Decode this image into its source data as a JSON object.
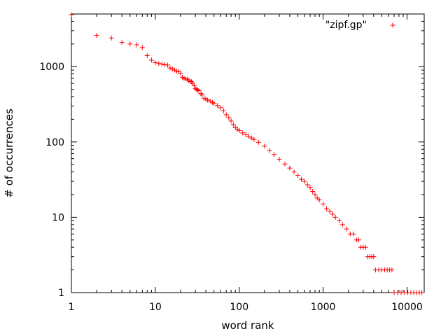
{
  "chart_data": {
    "type": "scatter",
    "xlabel": "word rank",
    "ylabel": "# of occurrences",
    "xscale": "log",
    "yscale": "log",
    "xlim": [
      1,
      16000
    ],
    "ylim": [
      1,
      5000
    ],
    "x_ticks": [
      1,
      10,
      100,
      1000,
      10000
    ],
    "x_tick_labels": [
      "1",
      "10",
      "100",
      "1000",
      "10000"
    ],
    "y_ticks": [
      1,
      10,
      100,
      1000
    ],
    "y_tick_labels": [
      "1",
      "10",
      "100",
      "1000"
    ],
    "grid": false,
    "legend_position": "top-right",
    "marker": "plus",
    "color": "#ff0000",
    "series": [
      {
        "name": "\"zipf.gp\"",
        "points": [
          [
            1,
            4900
          ],
          [
            2,
            2600
          ],
          [
            3,
            2400
          ],
          [
            4,
            2100
          ],
          [
            5,
            2000
          ],
          [
            6,
            1950
          ],
          [
            7,
            1800
          ],
          [
            8,
            1400
          ],
          [
            9,
            1220
          ],
          [
            10,
            1130
          ],
          [
            11,
            1100
          ],
          [
            12,
            1080
          ],
          [
            13,
            1060
          ],
          [
            14,
            1050
          ],
          [
            15,
            960
          ],
          [
            16,
            930
          ],
          [
            17,
            900
          ],
          [
            18,
            870
          ],
          [
            19,
            860
          ],
          [
            20,
            820
          ],
          [
            21,
            720
          ],
          [
            22,
            700
          ],
          [
            23,
            690
          ],
          [
            24,
            680
          ],
          [
            25,
            650
          ],
          [
            26,
            640
          ],
          [
            27,
            630
          ],
          [
            28,
            600
          ],
          [
            29,
            560
          ],
          [
            30,
            510
          ],
          [
            31,
            500
          ],
          [
            32,
            490
          ],
          [
            33,
            480
          ],
          [
            35,
            440
          ],
          [
            36,
            420
          ],
          [
            38,
            380
          ],
          [
            40,
            370
          ],
          [
            42,
            360
          ],
          [
            45,
            350
          ],
          [
            48,
            335
          ],
          [
            50,
            325
          ],
          [
            55,
            305
          ],
          [
            60,
            285
          ],
          [
            65,
            260
          ],
          [
            70,
            230
          ],
          [
            75,
            210
          ],
          [
            80,
            190
          ],
          [
            85,
            170
          ],
          [
            90,
            155
          ],
          [
            95,
            148
          ],
          [
            100,
            142
          ],
          [
            110,
            132
          ],
          [
            120,
            125
          ],
          [
            130,
            119
          ],
          [
            140,
            113
          ],
          [
            150,
            108
          ],
          [
            170,
            99
          ],
          [
            200,
            88
          ],
          [
            230,
            77
          ],
          [
            260,
            68
          ],
          [
            300,
            59
          ],
          [
            350,
            51
          ],
          [
            400,
            45
          ],
          [
            450,
            40
          ],
          [
            500,
            36
          ],
          [
            550,
            32
          ],
          [
            600,
            30
          ],
          [
            650,
            27
          ],
          [
            700,
            25
          ],
          [
            750,
            22
          ],
          [
            800,
            20
          ],
          [
            850,
            18
          ],
          [
            900,
            17
          ],
          [
            1000,
            15
          ],
          [
            1100,
            13
          ],
          [
            1200,
            12
          ],
          [
            1300,
            11
          ],
          [
            1400,
            10
          ],
          [
            1550,
            9
          ],
          [
            1700,
            8
          ],
          [
            1900,
            7
          ],
          [
            2100,
            6
          ],
          [
            2300,
            6
          ],
          [
            2500,
            5
          ],
          [
            2650,
            5
          ],
          [
            2800,
            4
          ],
          [
            3000,
            4
          ],
          [
            3200,
            4
          ],
          [
            3400,
            3
          ],
          [
            3600,
            3
          ],
          [
            3800,
            3
          ],
          [
            4000,
            3
          ],
          [
            4200,
            2
          ],
          [
            4600,
            2
          ],
          [
            5000,
            2
          ],
          [
            5400,
            2
          ],
          [
            5800,
            2
          ],
          [
            6200,
            2
          ],
          [
            6600,
            2
          ],
          [
            7000,
            1
          ],
          [
            7700,
            1
          ],
          [
            8500,
            1
          ],
          [
            9300,
            1
          ],
          [
            10200,
            1
          ],
          [
            11100,
            1
          ],
          [
            12000,
            1
          ],
          [
            13000,
            1
          ],
          [
            14000,
            1
          ],
          [
            15000,
            1
          ]
        ]
      }
    ]
  }
}
